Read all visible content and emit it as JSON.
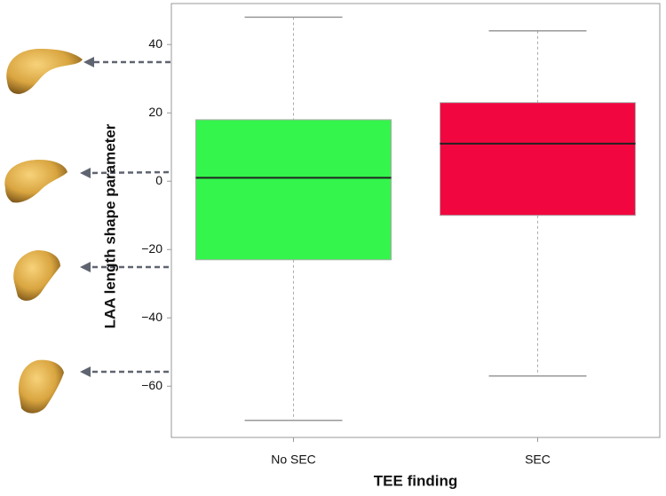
{
  "chart_data": {
    "type": "box",
    "x_label": "TEE finding",
    "y_label": "LAA length shape parameter",
    "categories": [
      "No SEC",
      "SEC"
    ],
    "boxes": [
      {
        "min": -70,
        "q1": -23,
        "median": 1,
        "q3": 18,
        "max": 48
      },
      {
        "min": -57,
        "q1": -10,
        "median": 11,
        "q3": 23,
        "max": 44
      }
    ],
    "colors": [
      "#33f54c",
      "#f2063f"
    ],
    "ylim": [
      -75,
      52
    ],
    "yticks": [
      {
        "value": -60,
        "label": "−60"
      },
      {
        "value": -40,
        "label": "−40"
      },
      {
        "value": -20,
        "label": "−20"
      },
      0,
      20,
      40
    ]
  }
}
